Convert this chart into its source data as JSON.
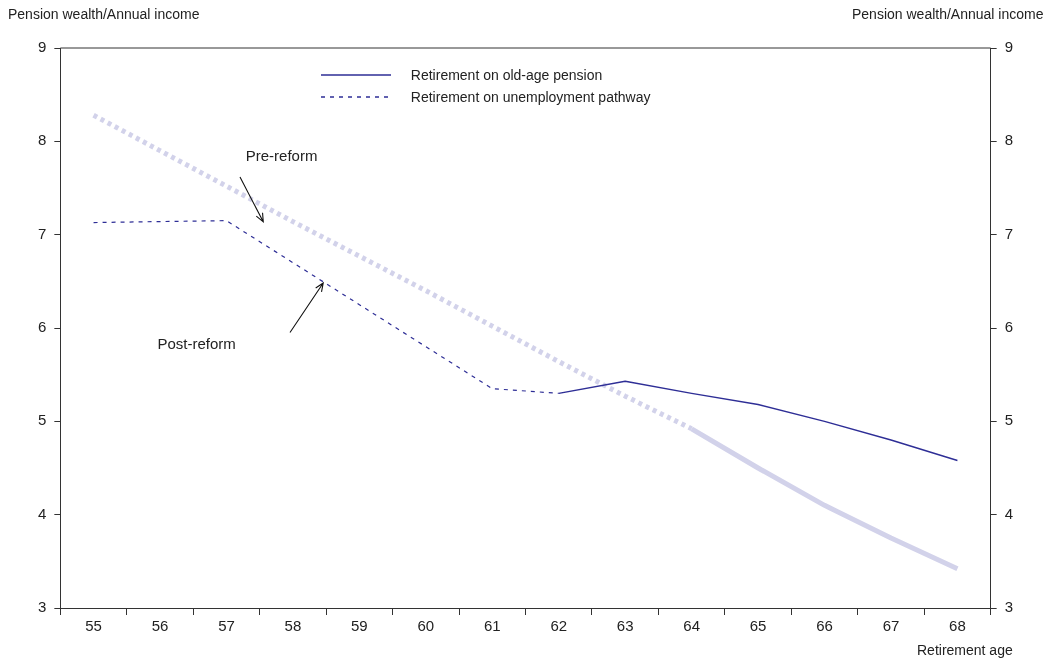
{
  "chart_data": {
    "type": "line",
    "ylabel": "Pension wealth/Annual income",
    "y2label": "Pension wealth/Annual income",
    "xlabel": "Retirement age",
    "categories": [
      "55",
      "56",
      "57",
      "58",
      "59",
      "60",
      "61",
      "62",
      "63",
      "64",
      "65",
      "66",
      "67",
      "68"
    ],
    "ylim": [
      3,
      9
    ],
    "yticks": [
      3,
      4,
      5,
      6,
      7,
      8,
      9
    ],
    "y2lim": [
      3,
      9
    ],
    "y2ticks": [
      3,
      4,
      5,
      6,
      7,
      8,
      9
    ],
    "legend": "top",
    "grid": false,
    "marker": "none",
    "annotations": [
      "Pre-reform",
      "Post-reform"
    ],
    "series": [
      {
        "color": "#d2d2ea",
        "line_style": "dotted",
        "values": [
          8.28,
          7.9,
          7.52,
          7.14,
          6.77,
          6.4,
          6.02,
          5.64,
          5.27,
          4.92,
          null,
          null,
          null,
          null
        ]
      },
      {
        "color": "#d2d2ea",
        "line_style": "solid",
        "values": [
          null,
          null,
          null,
          null,
          null,
          null,
          null,
          null,
          null,
          4.92,
          4.5,
          4.1,
          3.75,
          3.42
        ]
      },
      {
        "name": "Retirement on old-age pension",
        "color": "#2e2e96",
        "line_style": "solid",
        "values": [
          null,
          null,
          null,
          null,
          null,
          null,
          null,
          5.3,
          5.43,
          5.3,
          5.18,
          5.0,
          4.8,
          4.58
        ]
      },
      {
        "name": "Retirement on unemployment pathway",
        "color": "#2e2e96",
        "line_style": "dashed",
        "values": [
          7.13,
          7.14,
          7.15,
          6.7,
          6.25,
          5.8,
          5.35,
          5.3,
          null,
          null,
          null,
          null,
          null,
          null
        ]
      }
    ]
  }
}
